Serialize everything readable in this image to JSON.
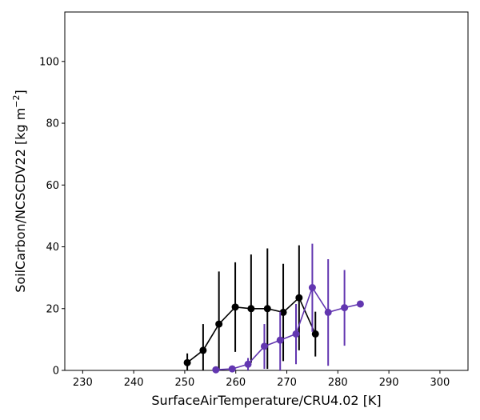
{
  "chart_data": {
    "type": "line",
    "title": "",
    "xlabel": "SurfaceAirTemperature/CRU4.02 [K]",
    "ylabel_main": "SoilCarbon/NCSCDV22 [kg m",
    "ylabel_unit_sup": "−2",
    "ylabel_end": "]",
    "xlim": [
      226.5,
      305.5
    ],
    "ylim": [
      0,
      116
    ],
    "xticks": [
      230,
      240,
      250,
      260,
      270,
      280,
      290,
      300
    ],
    "yticks": [
      0,
      20,
      40,
      60,
      80,
      100
    ],
    "grid": false,
    "series": [
      {
        "color": "#000000",
        "points": [
          {
            "x": 250.5,
            "y": 2.5,
            "lo": 0.0,
            "hi": 5.5
          },
          {
            "x": 253.6,
            "y": 6.5,
            "lo": 0.0,
            "hi": 15.0
          },
          {
            "x": 256.7,
            "y": 15.0,
            "lo": 0.0,
            "hi": 32.0
          },
          {
            "x": 259.9,
            "y": 20.5,
            "lo": 6.0,
            "hi": 35.0
          },
          {
            "x": 263.0,
            "y": 20.0,
            "lo": 2.5,
            "hi": 37.5
          },
          {
            "x": 266.2,
            "y": 20.0,
            "lo": 0.5,
            "hi": 39.5
          },
          {
            "x": 269.3,
            "y": 18.8,
            "lo": 3.0,
            "hi": 34.5
          },
          {
            "x": 272.4,
            "y": 23.5,
            "lo": 6.5,
            "hi": 40.5
          },
          {
            "x": 275.6,
            "y": 11.8,
            "lo": 4.5,
            "hi": 19.0
          }
        ]
      },
      {
        "color": "#6236b0",
        "points": [
          {
            "x": 256.1,
            "y": 0.2,
            "lo": 0.0,
            "hi": 0.5
          },
          {
            "x": 259.3,
            "y": 0.5,
            "lo": 0.0,
            "hi": 1.0
          },
          {
            "x": 262.4,
            "y": 2.0,
            "lo": 0.0,
            "hi": 4.0
          },
          {
            "x": 265.6,
            "y": 7.8,
            "lo": 0.5,
            "hi": 15.0
          },
          {
            "x": 268.7,
            "y": 9.8,
            "lo": 0.0,
            "hi": 19.0
          },
          {
            "x": 271.8,
            "y": 11.8,
            "lo": 2.0,
            "hi": 21.5
          },
          {
            "x": 275.0,
            "y": 26.8,
            "lo": 12.5,
            "hi": 41.0
          },
          {
            "x": 278.1,
            "y": 18.8,
            "lo": 1.5,
            "hi": 36.0
          },
          {
            "x": 281.3,
            "y": 20.3,
            "lo": 8.0,
            "hi": 32.5
          },
          {
            "x": 284.4,
            "y": 21.5,
            "lo": 21.5,
            "hi": 21.5
          }
        ]
      }
    ]
  }
}
